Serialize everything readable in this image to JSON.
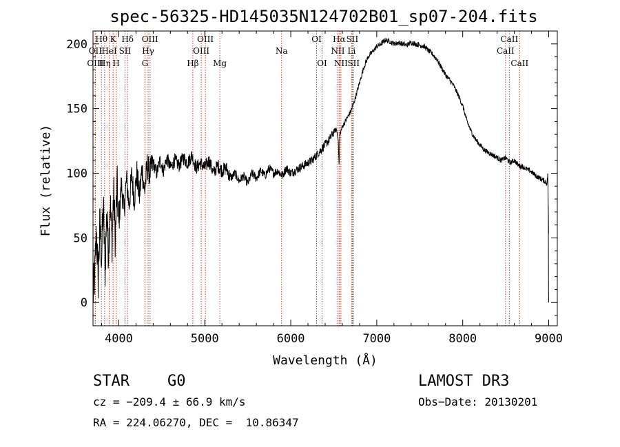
{
  "chart_data": {
    "type": "line",
    "title": "spec-56325-HD145035N124702B01_sp07-204.fits",
    "xlabel": "Wavelength (Å)",
    "ylabel": "Flux (relative)",
    "xlim": [
      3700,
      9100
    ],
    "ylim": [
      -18,
      210
    ],
    "xticks": [
      4000,
      5000,
      6000,
      7000,
      8000,
      9000
    ],
    "yticks": [
      0,
      50,
      100,
      150,
      200
    ],
    "series": [
      {
        "name": "flux",
        "x": [
          3700,
          3720,
          3740,
          3760,
          3780,
          3800,
          3820,
          3840,
          3860,
          3880,
          3900,
          3920,
          3940,
          3960,
          3980,
          4000,
          4030,
          4060,
          4090,
          4120,
          4150,
          4180,
          4210,
          4240,
          4270,
          4300,
          4330,
          4360,
          4400,
          4440,
          4480,
          4520,
          4560,
          4600,
          4650,
          4700,
          4750,
          4800,
          4850,
          4900,
          4950,
          5000,
          5050,
          5100,
          5150,
          5200,
          5250,
          5300,
          5350,
          5400,
          5450,
          5500,
          5550,
          5600,
          5650,
          5700,
          5750,
          5800,
          5850,
          5900,
          5950,
          6000,
          6050,
          6100,
          6150,
          6200,
          6250,
          6300,
          6350,
          6400,
          6450,
          6500,
          6530,
          6550,
          6563,
          6570,
          6600,
          6650,
          6700,
          6750,
          6800,
          6850,
          6900,
          6950,
          7000,
          7050,
          7100,
          7150,
          7200,
          7250,
          7300,
          7350,
          7400,
          7450,
          7500,
          7550,
          7600,
          7650,
          7700,
          7750,
          7800,
          7850,
          7900,
          7950,
          8000,
          8050,
          8100,
          8150,
          8200,
          8250,
          8300,
          8350,
          8400,
          8450,
          8500,
          8550,
          8600,
          8650,
          8700,
          8750,
          8800,
          8850,
          8900,
          8950,
          8980,
          8990,
          9000
        ],
        "y": [
          5,
          20,
          55,
          18,
          60,
          35,
          75,
          25,
          70,
          40,
          78,
          45,
          85,
          50,
          90,
          60,
          92,
          70,
          95,
          75,
          98,
          80,
          100,
          82,
          104,
          85,
          106,
          100,
          108,
          100,
          110,
          102,
          112,
          104,
          110,
          106,
          112,
          108,
          114,
          104,
          108,
          104,
          110,
          100,
          106,
          102,
          104,
          96,
          100,
          94,
          98,
          92,
          100,
          96,
          102,
          98,
          104,
          100,
          102,
          98,
          104,
          100,
          102,
          104,
          106,
          108,
          110,
          114,
          118,
          122,
          126,
          132,
          134,
          128,
          105,
          130,
          136,
          142,
          148,
          158,
          170,
          182,
          190,
          194,
          198,
          200,
          203,
          202,
          200,
          201,
          200,
          199,
          201,
          200,
          199,
          198,
          195,
          192,
          188,
          182,
          176,
          172,
          167,
          160,
          152,
          140,
          132,
          126,
          122,
          118,
          116,
          114,
          112,
          110,
          112,
          108,
          110,
          106,
          105,
          103,
          101,
          98,
          96,
          94,
          92,
          100,
          40
        ]
      }
    ],
    "line_markers": [
      {
        "label": "Hθ",
        "x": 3798,
        "row": 1
      },
      {
        "label": "OII",
        "x": 3727,
        "row": 2
      },
      {
        "label": "OIII",
        "x": 3727,
        "row": 3
      },
      {
        "label": "K",
        "x": 3934,
        "row": 1
      },
      {
        "label": "HeI",
        "x": 3889,
        "row": 2
      },
      {
        "label": "Hη",
        "x": 3835,
        "row": 3
      },
      {
        "label": "H",
        "x": 3969,
        "row": 3
      },
      {
        "label": "Hδ",
        "x": 4102,
        "row": 1
      },
      {
        "label": "SII",
        "x": 4072,
        "row": 2
      },
      {
        "label": "OIII",
        "x": 4363,
        "row": 1
      },
      {
        "label": "Hγ",
        "x": 4341,
        "row": 2
      },
      {
        "label": "G",
        "x": 4305,
        "row": 3
      },
      {
        "label": "Hβ",
        "x": 4861,
        "row": 3
      },
      {
        "label": "OIII",
        "x": 5007,
        "row": 1
      },
      {
        "label": "OIII",
        "x": 4959,
        "row": 2
      },
      {
        "label": "Mg",
        "x": 5175,
        "row": 3
      },
      {
        "label": "Na",
        "x": 5893,
        "row": 2
      },
      {
        "label": "OI",
        "x": 6300,
        "row": 1
      },
      {
        "label": "OI",
        "x": 6364,
        "row": 3
      },
      {
        "label": "Hα",
        "x": 6563,
        "row": 1
      },
      {
        "label": "SII",
        "x": 6716,
        "row": 1
      },
      {
        "label": "NII",
        "x": 6548,
        "row": 2
      },
      {
        "label": "Li",
        "x": 6708,
        "row": 2
      },
      {
        "label": "NII",
        "x": 6583,
        "row": 3
      },
      {
        "label": "SII",
        "x": 6731,
        "row": 3
      },
      {
        "label": "CaII",
        "x": 8542,
        "row": 1
      },
      {
        "label": "CaII",
        "x": 8498,
        "row": 2
      },
      {
        "label": "CaII",
        "x": 8662,
        "row": 3
      }
    ]
  },
  "info": {
    "class": "STAR",
    "subclass": "G0",
    "survey": "LAMOST DR3",
    "cz": "cz = −209.4 ± 66.9 km/s",
    "obs_date": "Obs−Date: 20130201",
    "radec": "RA = 224.06270, DEC =  10.86347"
  }
}
